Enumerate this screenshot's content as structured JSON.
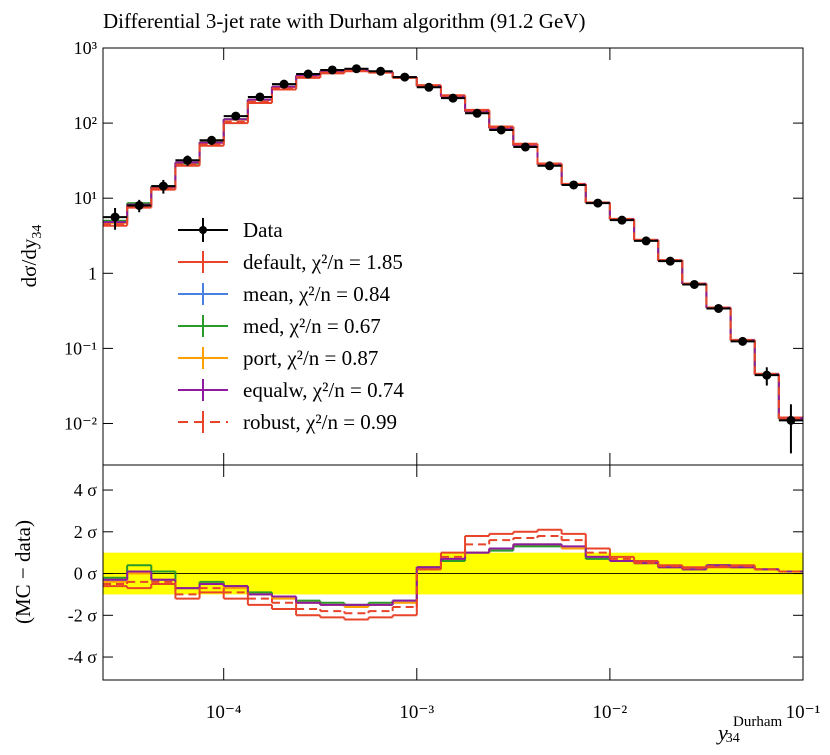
{
  "chart_data": [
    {
      "type": "histogram",
      "title": "Differential 3-jet rate with Durham algorithm (91.2 GeV)",
      "y_label": {
        "main": "dσ/dy",
        "sub": "34"
      },
      "x_log": true,
      "y_log": true,
      "xlim": [
        2.371e-05,
        0.1
      ],
      "ylim": [
        0.0028,
        1000
      ],
      "yticks": [
        {
          "value": 1000,
          "label": "10³"
        },
        {
          "value": 100,
          "label": "10²"
        },
        {
          "value": 10,
          "label": "10¹"
        },
        1,
        {
          "value": 0.1,
          "label": "10⁻¹"
        },
        {
          "value": 0.01,
          "label": "10⁻²"
        }
      ],
      "bins": [
        2.371e-05,
        3.162e-05,
        4.217e-05,
        5.623e-05,
        7.499e-05,
        0.0001,
        0.0001334,
        0.0001778,
        0.0002371,
        0.0003162,
        0.0004217,
        0.0005623,
        0.0007499,
        0.001,
        0.001334,
        0.001778,
        0.002371,
        0.003162,
        0.004217,
        0.005623,
        0.007499,
        0.01,
        0.01334,
        0.01778,
        0.02371,
        0.03162,
        0.04217,
        0.05623,
        0.07499,
        0.1
      ],
      "data": {
        "name": "Data",
        "color": "#000000",
        "values": [
          5.6,
          8,
          14.5,
          32,
          59,
          124,
          223,
          330,
          450,
          510,
          530,
          490,
          410,
          300,
          215,
          135,
          81,
          48,
          27,
          15,
          8.6,
          5.1,
          2.7,
          1.45,
          0.71,
          0.34,
          0.124,
          0.044,
          0.011
        ],
        "errors": [
          1.8,
          1.5,
          3,
          5,
          8,
          12,
          15,
          20,
          20,
          20,
          20,
          18,
          15,
          10,
          8,
          5,
          3,
          2,
          1,
          0.6,
          0.3,
          0.2,
          0.1,
          0.05,
          0.03,
          0.02,
          0.012,
          0.012,
          0.007
        ]
      },
      "series": [
        {
          "name": "default, χ²/n = 1.85",
          "color": "#e8442a",
          "dashed": false,
          "values": [
            4.3,
            7.5,
            13,
            27,
            50,
            100,
            185,
            280,
            400,
            460,
            490,
            470,
            400,
            320,
            235,
            150,
            90,
            53,
            29,
            15.5,
            8.8,
            5.3,
            2.8,
            1.5,
            0.73,
            0.35,
            0.13,
            0.046,
            0.012
          ]
        },
        {
          "name": "mean, χ²/n = 0.84",
          "color": "#4a80e0",
          "dashed": false,
          "values": [
            4.8,
            8.2,
            14,
            30,
            55,
            112,
            205,
            305,
            430,
            490,
            510,
            480,
            410,
            310,
            225,
            142,
            85,
            50,
            28,
            15.2,
            8.7,
            5.2,
            2.75,
            1.47,
            0.72,
            0.345,
            0.127,
            0.045,
            0.0115
          ]
        },
        {
          "name": "med, χ²/n = 0.67",
          "color": "#2a9a2a",
          "dashed": false,
          "values": [
            5.0,
            8.6,
            14.5,
            29,
            56,
            113,
            206,
            306,
            432,
            492,
            512,
            481,
            411,
            311,
            224,
            141,
            85,
            50,
            28,
            15.1,
            8.7,
            5.2,
            2.74,
            1.47,
            0.72,
            0.345,
            0.128,
            0.045,
            0.0115
          ]
        },
        {
          "name": "port, χ²/n = 0.87",
          "color": "#ff9f00",
          "dashed": false,
          "values": [
            4.7,
            8.1,
            13.9,
            30,
            55,
            111,
            204,
            304,
            429,
            489,
            509,
            479,
            409,
            310,
            225,
            142,
            85,
            50,
            28,
            15.2,
            8.7,
            5.2,
            2.75,
            1.47,
            0.72,
            0.344,
            0.127,
            0.045,
            0.0116
          ]
        },
        {
          "name": "equalw, χ²/n = 0.74",
          "color": "#8e1b9e",
          "dashed": false,
          "values": [
            4.8,
            8.2,
            14,
            30,
            55,
            112,
            205,
            305,
            430,
            490,
            510,
            480,
            410,
            310,
            225,
            143,
            86,
            50,
            28,
            15.2,
            8.7,
            5.2,
            2.75,
            1.47,
            0.72,
            0.345,
            0.128,
            0.045,
            0.0117
          ]
        },
        {
          "name": "robust, χ²/n = 0.99",
          "color": "#e8442a",
          "dashed": true,
          "values": [
            4.5,
            7.8,
            13.5,
            28,
            52,
            104,
            192,
            290,
            410,
            470,
            498,
            474,
            404,
            316,
            231,
            147,
            88,
            52,
            28.6,
            15.4,
            8.75,
            5.25,
            2.78,
            1.49,
            0.725,
            0.348,
            0.129,
            0.0455,
            0.0118
          ]
        }
      ]
    },
    {
      "type": "histogram",
      "y_label": "(MC − data)",
      "x_label": {
        "main": "y",
        "sub": "34",
        "sup": "Durham"
      },
      "x_log": true,
      "y_log": false,
      "xlim": [
        2.371e-05,
        0.1
      ],
      "ylim": [
        -5.1,
        5.2
      ],
      "xticks": [
        {
          "value": 0.0001,
          "label": "10⁻⁴"
        },
        {
          "value": 0.001,
          "label": "10⁻³"
        },
        {
          "value": 0.01,
          "label": "10⁻²"
        },
        {
          "value": 0.1,
          "label": "10⁻¹"
        }
      ],
      "yticks": [
        {
          "value": 4,
          "label": "4 σ"
        },
        {
          "value": 2,
          "label": "2 σ"
        },
        {
          "value": 0,
          "label": "0 σ"
        },
        {
          "value": -2,
          "label": "-2 σ"
        },
        {
          "value": -4,
          "label": "-4 σ"
        }
      ],
      "band": {
        "range": [
          -1,
          1
        ],
        "color": "#ffff00"
      },
      "series": [
        {
          "color": "#e8442a",
          "dashed": false,
          "values": [
            -0.6,
            -0.7,
            -0.5,
            -1.2,
            -0.9,
            -1.2,
            -1.5,
            -1.7,
            -2.0,
            -2.1,
            -2.2,
            -2.1,
            -2.0,
            0.2,
            1.0,
            1.8,
            1.9,
            2.0,
            2.1,
            1.9,
            1.2,
            0.8,
            0.6,
            0.4,
            0.3,
            0.3,
            0.4,
            0.2,
            0.1
          ]
        },
        {
          "color": "#4a80e0",
          "dashed": false,
          "values": [
            -0.3,
            0.1,
            -0.3,
            -0.7,
            -0.5,
            -0.6,
            -1.0,
            -1.1,
            -1.4,
            -1.5,
            -1.5,
            -1.5,
            -1.3,
            0.3,
            0.7,
            1.0,
            1.2,
            1.4,
            1.4,
            1.2,
            0.8,
            0.6,
            0.5,
            0.3,
            0.2,
            0.4,
            0.3,
            0.2,
            0.1
          ]
        },
        {
          "color": "#2a9a2a",
          "dashed": false,
          "values": [
            -0.2,
            0.4,
            0.1,
            -0.7,
            -0.4,
            -0.6,
            -0.9,
            -1.1,
            -1.3,
            -1.4,
            -1.5,
            -1.4,
            -1.3,
            0.3,
            0.6,
            1.0,
            1.1,
            1.3,
            1.3,
            1.2,
            0.7,
            0.6,
            0.5,
            0.3,
            0.2,
            0.4,
            0.3,
            0.2,
            0.1
          ]
        },
        {
          "color": "#ff9f00",
          "dashed": false,
          "values": [
            -0.4,
            0.0,
            -0.3,
            -0.7,
            -0.5,
            -0.7,
            -1.0,
            -1.2,
            -1.4,
            -1.5,
            -1.6,
            -1.5,
            -1.4,
            0.3,
            0.7,
            1.0,
            1.2,
            1.4,
            1.4,
            1.2,
            0.8,
            0.6,
            0.5,
            0.3,
            0.2,
            0.4,
            0.3,
            0.2,
            0.1
          ]
        },
        {
          "color": "#8e1b9e",
          "dashed": false,
          "values": [
            -0.3,
            0.1,
            -0.3,
            -0.7,
            -0.5,
            -0.6,
            -1.0,
            -1.1,
            -1.4,
            -1.5,
            -1.5,
            -1.5,
            -1.3,
            0.3,
            0.7,
            1.0,
            1.2,
            1.4,
            1.4,
            1.3,
            0.8,
            0.6,
            0.5,
            0.3,
            0.2,
            0.4,
            0.3,
            0.2,
            0.1
          ]
        },
        {
          "color": "#e8442a",
          "dashed": true,
          "values": [
            -0.5,
            -0.4,
            -0.4,
            -1.0,
            -0.7,
            -0.9,
            -1.2,
            -1.4,
            -1.7,
            -1.8,
            -1.9,
            -1.8,
            -1.6,
            0.2,
            0.8,
            1.4,
            1.6,
            1.7,
            1.8,
            1.6,
            1.0,
            0.7,
            0.5,
            0.35,
            0.25,
            0.35,
            0.35,
            0.2,
            0.1
          ]
        }
      ]
    }
  ]
}
